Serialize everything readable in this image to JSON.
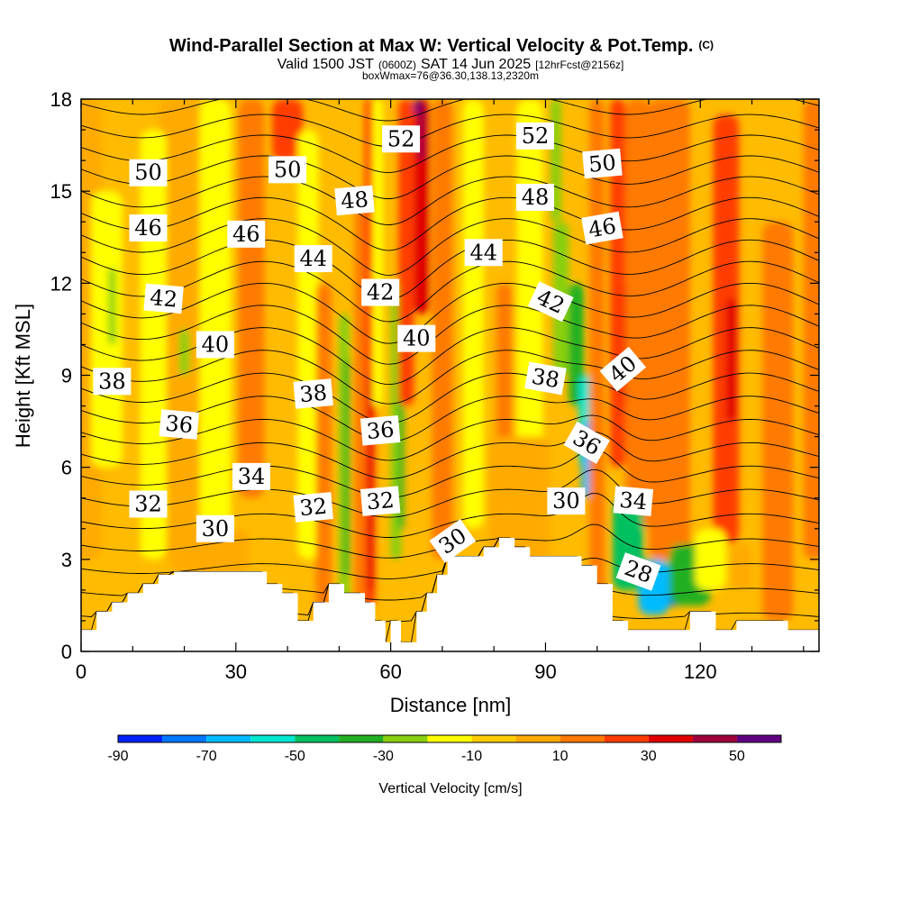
{
  "header": {
    "title": "Wind-Parallel Section at Max W: Vertical Velocity & Pot.Temp.",
    "copyright": "(C)",
    "valid_prefix": "Valid 1500 JST",
    "valid_utc": "(0600Z)",
    "valid_date": "SAT 14 Jun 2025",
    "forecast_info": "[12hrFcst@2156z]",
    "box_info": "boxWmax=76@36.30,138.13,2320m"
  },
  "chart_data": {
    "type": "heatmap",
    "xlabel": "Distance [nm]",
    "ylabel": "Height [Kft MSL]",
    "xlim": [
      0,
      143
    ],
    "ylim": [
      0,
      18
    ],
    "x_ticks": [
      0,
      30,
      60,
      90,
      120
    ],
    "y_ticks": [
      0,
      3,
      6,
      9,
      12,
      15,
      18
    ],
    "colorbar": {
      "label": "Vertical Velocity [cm/s]",
      "tick_values": [
        -90,
        -70,
        -50,
        -30,
        -10,
        10,
        30,
        50
      ],
      "bins": [
        {
          "from": -90,
          "to": -80,
          "color": "#0022ff"
        },
        {
          "from": -80,
          "to": -70,
          "color": "#0077ff"
        },
        {
          "from": -70,
          "to": -60,
          "color": "#00bbff"
        },
        {
          "from": -60,
          "to": -50,
          "color": "#00e6d0"
        },
        {
          "from": -50,
          "to": -40,
          "color": "#00c060"
        },
        {
          "from": -40,
          "to": -30,
          "color": "#22b022"
        },
        {
          "from": -30,
          "to": -20,
          "color": "#88d010"
        },
        {
          "from": -20,
          "to": -10,
          "color": "#ffff00"
        },
        {
          "from": -10,
          "to": 0,
          "color": "#ffcc00"
        },
        {
          "from": 0,
          "to": 10,
          "color": "#ffaa00"
        },
        {
          "from": 10,
          "to": 20,
          "color": "#ff7a00"
        },
        {
          "from": 20,
          "to": 30,
          "color": "#ff3c00"
        },
        {
          "from": 30,
          "to": 40,
          "color": "#e00000"
        },
        {
          "from": 40,
          "to": 50,
          "color": "#a0003c"
        },
        {
          "from": 50,
          "to": 60,
          "color": "#600080"
        }
      ]
    },
    "velocity_features": [
      {
        "x": 0,
        "y_from": 3,
        "y_to": 18,
        "width": 8,
        "value": 4
      },
      {
        "x": 20,
        "y_from": 3,
        "y_to": 18,
        "width": 10,
        "value": 2
      },
      {
        "x": 5,
        "y_from": 6,
        "y_to": 15,
        "width": 6,
        "value": -12
      },
      {
        "x": 6,
        "y_from": 10,
        "y_to": 12.5,
        "width": 1.5,
        "value": -28
      },
      {
        "x": 14,
        "y_from": 3,
        "y_to": 17,
        "width": 5,
        "value": -12
      },
      {
        "x": 20,
        "y_from": 9,
        "y_to": 10.5,
        "width": 2,
        "value": -28
      },
      {
        "x": 26,
        "y_from": 3,
        "y_to": 18,
        "width": 6,
        "value": -12
      },
      {
        "x": 33,
        "y_from": 5,
        "y_to": 18,
        "width": 5,
        "value": 14
      },
      {
        "x": 40,
        "y_from": 16,
        "y_to": 18,
        "width": 6,
        "value": 25
      },
      {
        "x": 44,
        "y_from": 3,
        "y_to": 17,
        "width": 4,
        "value": -12
      },
      {
        "x": 47,
        "y_from": 1,
        "y_to": 12,
        "width": 3,
        "value": 14
      },
      {
        "x": 51,
        "y_from": 1,
        "y_to": 11,
        "width": 2,
        "value": -25
      },
      {
        "x": 51.5,
        "y_from": 2.5,
        "y_to": 9.5,
        "width": 1,
        "value": -35
      },
      {
        "x": 54,
        "y_from": 1,
        "y_to": 15,
        "width": 2,
        "value": 14
      },
      {
        "x": 56,
        "y_from": 1.5,
        "y_to": 18,
        "width": 2,
        "value": 26
      },
      {
        "x": 56,
        "y_from": 2,
        "y_to": 9,
        "width": 1,
        "value": 36
      },
      {
        "x": 57.5,
        "y_from": 8,
        "y_to": 18,
        "width": 2,
        "value": -12
      },
      {
        "x": 61,
        "y_from": 3,
        "y_to": 12,
        "width": 2,
        "value": -25
      },
      {
        "x": 62,
        "y_from": 4,
        "y_to": 9,
        "width": 1,
        "value": -35
      },
      {
        "x": 63,
        "y_from": 8,
        "y_to": 18,
        "width": 3,
        "value": 25
      },
      {
        "x": 66,
        "y_from": 11,
        "y_to": 18,
        "width": 3,
        "value": 35
      },
      {
        "x": 66,
        "y_from": 16,
        "y_to": 18,
        "width": 1.5,
        "value": 45
      },
      {
        "x": 65,
        "y_from": 17.5,
        "y_to": 18,
        "width": 1,
        "value": 55
      },
      {
        "x": 70,
        "y_from": 3,
        "y_to": 18,
        "width": 4,
        "value": 14
      },
      {
        "x": 76,
        "y_from": 4,
        "y_to": 18,
        "width": 4,
        "value": -12
      },
      {
        "x": 82,
        "y_from": 4,
        "y_to": 12,
        "width": 3,
        "value": 14
      },
      {
        "x": 87,
        "y_from": 4,
        "y_to": 18,
        "width": 5,
        "value": -12
      },
      {
        "x": 85,
        "y_from": 3,
        "y_to": 7,
        "width": 12,
        "value": 4
      },
      {
        "x": 92,
        "y_from": 14,
        "y_to": 18,
        "width": 2,
        "value": -25
      },
      {
        "x": 93,
        "y_from": 9,
        "y_to": 14,
        "width": 3,
        "value": -25
      },
      {
        "x": 96,
        "y_from": 8,
        "y_to": 12,
        "width": 3,
        "value": -35
      },
      {
        "x": 98,
        "y_from": 6,
        "y_to": 9,
        "width": 3,
        "value": -55
      },
      {
        "x": 98,
        "y_from": 5,
        "y_to": 7.5,
        "width": 2,
        "value": -65
      },
      {
        "x": 100,
        "y_from": 1,
        "y_to": 18,
        "width": 3,
        "value": 14
      },
      {
        "x": 104,
        "y_from": 6,
        "y_to": 18,
        "width": 3,
        "value": 28
      },
      {
        "x": 106,
        "y_from": 8,
        "y_to": 12,
        "width": 1.5,
        "value": 38
      },
      {
        "x": 107,
        "y_from": 10,
        "y_to": 11.5,
        "width": 1,
        "value": 48
      },
      {
        "x": 108,
        "y_from": 4,
        "y_to": 18,
        "width": 5,
        "value": 14
      },
      {
        "x": 114,
        "y_from": 3,
        "y_to": 18,
        "width": 8,
        "value": 14
      },
      {
        "x": 125,
        "y_from": 3.5,
        "y_to": 17.5,
        "width": 5,
        "value": 25
      },
      {
        "x": 126,
        "y_from": 7.5,
        "y_to": 11.5,
        "width": 2,
        "value": 35
      },
      {
        "x": 135,
        "y_from": 1,
        "y_to": 14,
        "width": 6,
        "value": 14
      },
      {
        "x": 142,
        "y_from": 3,
        "y_to": 18,
        "width": 4,
        "value": 14
      },
      {
        "x": 25,
        "y_from": 2.5,
        "y_to": 4,
        "width": 15,
        "value": 4
      },
      {
        "x": 115,
        "y_from": 1.5,
        "y_to": 2.5,
        "width": 5,
        "value": -85
      },
      {
        "x": 111,
        "y_from": 1.2,
        "y_to": 3,
        "width": 6,
        "value": -65
      },
      {
        "x": 106,
        "y_from": 2,
        "y_to": 5,
        "width": 6,
        "value": -50
      },
      {
        "x": 118,
        "y_from": 1.5,
        "y_to": 3.5,
        "width": 8,
        "value": -35
      },
      {
        "x": 122,
        "y_from": 2,
        "y_to": 4,
        "width": 6,
        "value": -15
      },
      {
        "x": 128,
        "y_from": 2,
        "y_to": 3.5,
        "width": 4,
        "value": 4
      }
    ],
    "terrain": [
      [
        0,
        0.7
      ],
      [
        3,
        0.7
      ],
      [
        3,
        1.3
      ],
      [
        6,
        1.3
      ],
      [
        6,
        1.6
      ],
      [
        9,
        1.6
      ],
      [
        9,
        1.9
      ],
      [
        12,
        1.9
      ],
      [
        12,
        2.2
      ],
      [
        15,
        2.2
      ],
      [
        15,
        2.5
      ],
      [
        18,
        2.5
      ],
      [
        18,
        2.6
      ],
      [
        36,
        2.6
      ],
      [
        36,
        2.2
      ],
      [
        39,
        2.2
      ],
      [
        39,
        1.9
      ],
      [
        42,
        1.9
      ],
      [
        42,
        1.0
      ],
      [
        45,
        1.0
      ],
      [
        45,
        1.6
      ],
      [
        48,
        1.6
      ],
      [
        48,
        2.2
      ],
      [
        51,
        2.2
      ],
      [
        51,
        1.9
      ],
      [
        55,
        1.9
      ],
      [
        55,
        1.6
      ],
      [
        57,
        1.6
      ],
      [
        57,
        1.0
      ],
      [
        59,
        1.0
      ],
      [
        59,
        0.3
      ],
      [
        60,
        0.3
      ],
      [
        60,
        1.0
      ],
      [
        62,
        1.0
      ],
      [
        62,
        0.3
      ],
      [
        65,
        0.3
      ],
      [
        65,
        1.3
      ],
      [
        67,
        1.3
      ],
      [
        67,
        1.9
      ],
      [
        69,
        1.9
      ],
      [
        69,
        2.5
      ],
      [
        71,
        2.5
      ],
      [
        71,
        3.1
      ],
      [
        78,
        3.1
      ],
      [
        78,
        3.4
      ],
      [
        81,
        3.4
      ],
      [
        81,
        3.7
      ],
      [
        84,
        3.7
      ],
      [
        84,
        3.4
      ],
      [
        87,
        3.4
      ],
      [
        87,
        3.1
      ],
      [
        97,
        3.1
      ],
      [
        97,
        2.8
      ],
      [
        100,
        2.8
      ],
      [
        100,
        2.2
      ],
      [
        103,
        2.2
      ],
      [
        103,
        1.0
      ],
      [
        106,
        1.0
      ],
      [
        106,
        0.7
      ],
      [
        118,
        0.7
      ],
      [
        118,
        1.3
      ],
      [
        123,
        1.3
      ],
      [
        123,
        0.7
      ],
      [
        127,
        0.7
      ],
      [
        127,
        1.0
      ],
      [
        137,
        1.0
      ],
      [
        137,
        0.7
      ],
      [
        143,
        0.7
      ]
    ],
    "theta_contours": [
      28,
      29,
      30,
      31,
      32,
      33,
      34,
      35,
      36,
      37,
      38,
      39,
      40,
      41,
      42,
      43,
      44,
      45,
      46,
      47,
      48,
      49,
      50,
      51,
      52,
      53
    ],
    "contour_labels": [
      {
        "text": "52",
        "x": 62,
        "y": 16.7,
        "angle": 0
      },
      {
        "text": "52",
        "x": 88,
        "y": 16.8,
        "angle": 0
      },
      {
        "text": "50",
        "x": 13,
        "y": 15.6,
        "angle": 0
      },
      {
        "text": "50",
        "x": 40,
        "y": 15.7,
        "angle": 0
      },
      {
        "text": "50",
        "x": 101,
        "y": 15.9,
        "angle": -5
      },
      {
        "text": "48",
        "x": 53,
        "y": 14.7,
        "angle": -5
      },
      {
        "text": "48",
        "x": 88,
        "y": 14.8,
        "angle": 0
      },
      {
        "text": "46",
        "x": 13,
        "y": 13.8,
        "angle": 0
      },
      {
        "text": "46",
        "x": 32,
        "y": 13.6,
        "angle": 0
      },
      {
        "text": "46",
        "x": 101,
        "y": 13.8,
        "angle": -10
      },
      {
        "text": "44",
        "x": 45,
        "y": 12.8,
        "angle": 0
      },
      {
        "text": "44",
        "x": 78,
        "y": 13.0,
        "angle": 0
      },
      {
        "text": "42",
        "x": 16,
        "y": 11.5,
        "angle": 5
      },
      {
        "text": "42",
        "x": 58,
        "y": 11.7,
        "angle": 0
      },
      {
        "text": "42",
        "x": 91,
        "y": 11.4,
        "angle": 25
      },
      {
        "text": "40",
        "x": 26,
        "y": 10.0,
        "angle": 0
      },
      {
        "text": "40",
        "x": 65,
        "y": 10.2,
        "angle": 0
      },
      {
        "text": "40",
        "x": 105,
        "y": 9.2,
        "angle": -40
      },
      {
        "text": "38",
        "x": 6,
        "y": 8.8,
        "angle": 0
      },
      {
        "text": "38",
        "x": 45,
        "y": 8.4,
        "angle": -5
      },
      {
        "text": "38",
        "x": 90,
        "y": 8.9,
        "angle": 10
      },
      {
        "text": "36",
        "x": 19,
        "y": 7.4,
        "angle": 5
      },
      {
        "text": "36",
        "x": 58,
        "y": 7.2,
        "angle": -5
      },
      {
        "text": "36",
        "x": 98,
        "y": 6.8,
        "angle": 30
      },
      {
        "text": "34",
        "x": 33,
        "y": 5.7,
        "angle": 0
      },
      {
        "text": "34",
        "x": 107,
        "y": 4.9,
        "angle": 5
      },
      {
        "text": "32",
        "x": 13,
        "y": 4.8,
        "angle": 0
      },
      {
        "text": "32",
        "x": 45,
        "y": 4.7,
        "angle": -5
      },
      {
        "text": "32",
        "x": 58,
        "y": 4.9,
        "angle": -5
      },
      {
        "text": "30",
        "x": 26,
        "y": 4.0,
        "angle": 0
      },
      {
        "text": "30",
        "x": 72,
        "y": 3.6,
        "angle": -35
      },
      {
        "text": "30",
        "x": 94,
        "y": 4.9,
        "angle": 0
      },
      {
        "text": "28",
        "x": 108,
        "y": 2.6,
        "angle": 20
      }
    ]
  }
}
